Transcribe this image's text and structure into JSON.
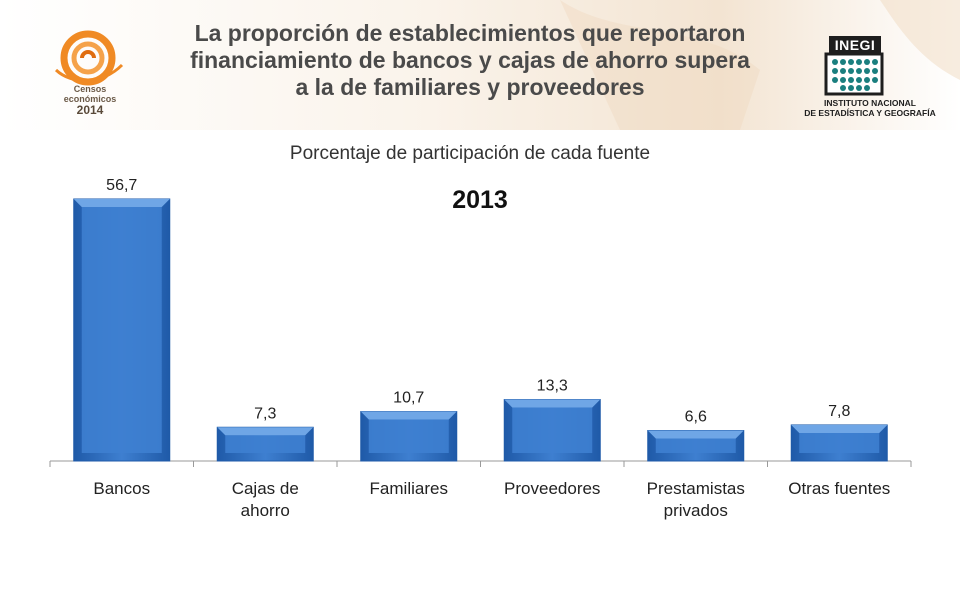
{
  "header": {
    "title_lines": [
      "La proporción de establecimientos que reportaron",
      "financiamiento de bancos y cajas de ahorro supera",
      "a la de familiares y proveedores"
    ]
  },
  "logos": {
    "censos": {
      "line1": "Censos",
      "line2": "económicos",
      "year": "2014"
    },
    "inegi": {
      "wordmark": "INEGI",
      "caption_lines": [
        "INSTITUTO NACIONAL",
        "DE ESTADÍSTICA Y GEOGRAFÍA"
      ]
    }
  },
  "colors": {
    "bar": "#3e7fd0",
    "bar_dark": "#1f5aa8",
    "bar_light": "#6fa6e6",
    "censos_orange": "#f08a24",
    "inegi_teal": "#1a7f7f"
  },
  "chart_data": {
    "type": "bar",
    "title": "Porcentaje de participación de cada fuente",
    "subtitle": "2013",
    "categories": [
      "Bancos",
      "Cajas de ahorro",
      "Familiares",
      "Proveedores",
      "Prestamistas privados",
      "Otras fuentes"
    ],
    "category_lines": [
      [
        "Bancos"
      ],
      [
        "Cajas de",
        "ahorro"
      ],
      [
        "Familiares"
      ],
      [
        "Proveedores"
      ],
      [
        "Prestamistas",
        "privados"
      ],
      [
        "Otras fuentes"
      ]
    ],
    "values": [
      56.7,
      7.3,
      10.7,
      13.3,
      6.6,
      7.8
    ],
    "value_labels": [
      "56,7",
      "7,3",
      "10,7",
      "13,3",
      "6,6",
      "7,8"
    ],
    "ylim": [
      0,
      56.7
    ],
    "grid": false,
    "legend": "none"
  }
}
